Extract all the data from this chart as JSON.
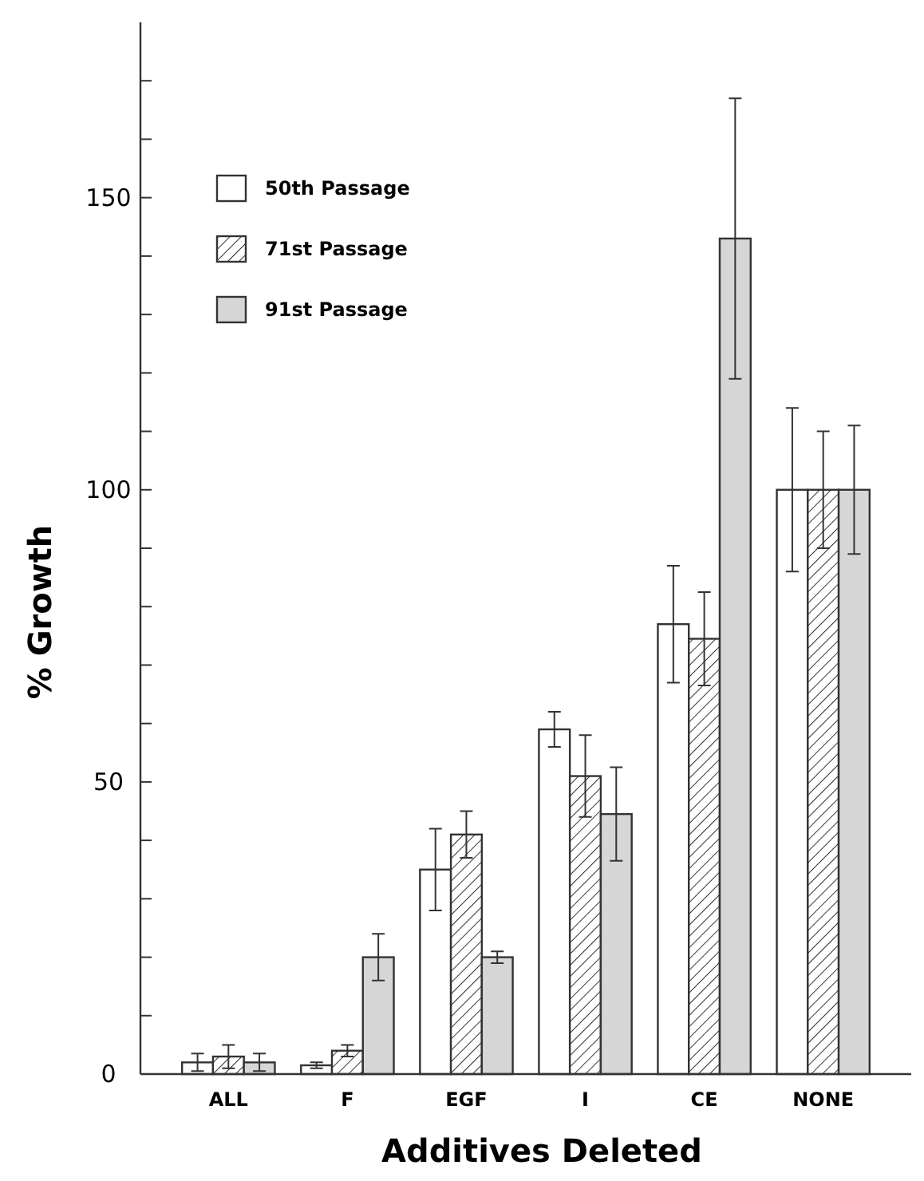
{
  "chart_data": {
    "type": "bar",
    "xlabel": "Additives Deleted",
    "ylabel": "% Growth",
    "categories": [
      "ALL",
      "F",
      "EGF",
      "I",
      "CE",
      "NONE"
    ],
    "series": [
      {
        "name": "50th Passage",
        "color": "#ffffff",
        "values": [
          2,
          1.5,
          35,
          59,
          77,
          100
        ],
        "errors": [
          1.5,
          0.5,
          7,
          3,
          10,
          14
        ]
      },
      {
        "name": "71st Passage",
        "color": "#333333",
        "values": [
          3,
          4,
          41,
          51,
          74.5,
          100
        ],
        "errors": [
          2,
          1,
          4,
          7,
          8,
          10
        ]
      },
      {
        "name": "91st Passage",
        "color": "#d6d6d6",
        "values": [
          2,
          20,
          20,
          44.5,
          143,
          100
        ],
        "errors": [
          1.5,
          4,
          1,
          8,
          24,
          11
        ]
      }
    ],
    "ylim": [
      0,
      180
    ],
    "yticks": [
      0,
      {
        "value": 10,
        "label": null
      },
      {
        "value": 20,
        "label": null
      },
      {
        "value": 30,
        "label": null
      },
      {
        "value": 40,
        "label": null
      },
      50,
      {
        "value": 60,
        "label": null
      },
      {
        "value": 70,
        "label": null
      },
      {
        "value": 80,
        "label": null
      },
      {
        "value": 90,
        "label": null
      },
      100,
      {
        "value": 110,
        "label": null
      },
      {
        "value": 120,
        "label": null
      },
      {
        "value": 130,
        "label": null
      },
      {
        "value": 140,
        "label": null
      },
      150,
      {
        "value": 160,
        "label": null
      },
      {
        "value": 170,
        "label": null
      }
    ],
    "grid": false,
    "legend": "top left"
  }
}
